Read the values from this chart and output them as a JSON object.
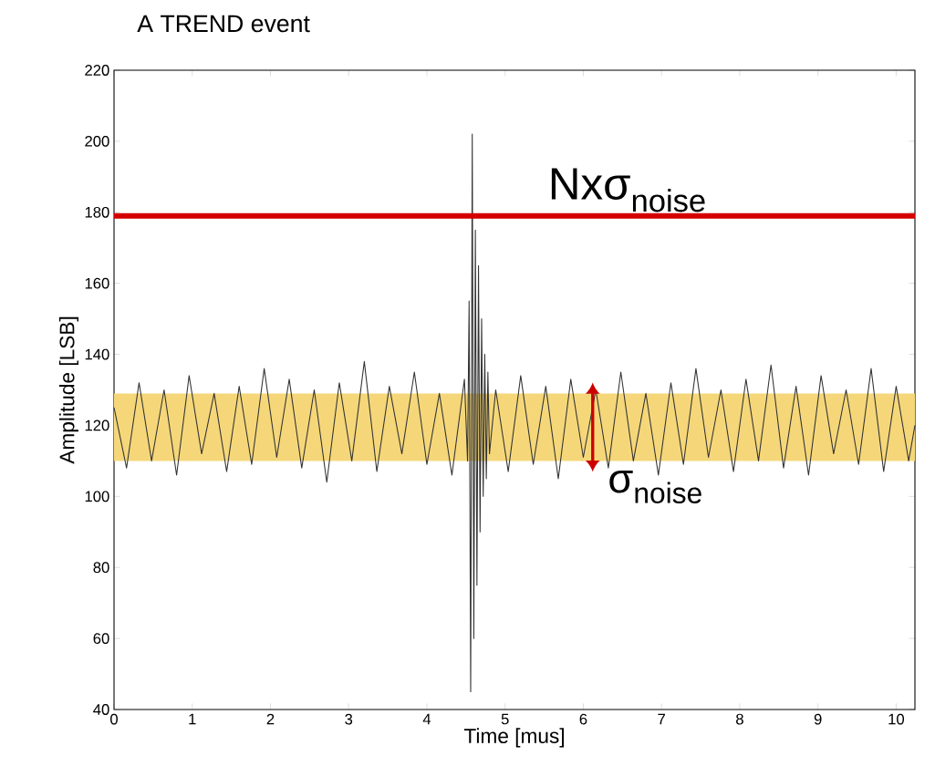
{
  "chart_data": {
    "type": "line",
    "title": "A TREND event",
    "xlabel": "Time [mus]",
    "ylabel": "Amplitude [LSB]",
    "xlim": [
      0,
      10.24
    ],
    "xticks": [
      0,
      1,
      2,
      3,
      4,
      5,
      6,
      7,
      8,
      9,
      10
    ],
    "ylim": [
      40,
      220
    ],
    "yticks": [
      40,
      60,
      80,
      100,
      120,
      140,
      160,
      180,
      200,
      220
    ],
    "grid": false,
    "marker": "none",
    "line_style": "solid",
    "series": [
      {
        "color": "#333333",
        "x": [
          0,
          0.16,
          0.32,
          0.48,
          0.64,
          0.8,
          0.96,
          1.12,
          1.28,
          1.44,
          1.6,
          1.76,
          1.92,
          2.08,
          2.24,
          2.4,
          2.56,
          2.72,
          2.88,
          3.04,
          3.2,
          3.36,
          3.52,
          3.68,
          3.84,
          4.0,
          4.16,
          4.32,
          4.48,
          4.52,
          4.54,
          4.56,
          4.58,
          4.6,
          4.62,
          4.64,
          4.66,
          4.68,
          4.7,
          4.72,
          4.74,
          4.76,
          4.78,
          4.8,
          4.88,
          5.04,
          5.2,
          5.36,
          5.52,
          5.68,
          5.84,
          6.0,
          6.16,
          6.32,
          6.48,
          6.64,
          6.8,
          6.96,
          7.12,
          7.28,
          7.44,
          7.6,
          7.76,
          7.92,
          8.08,
          8.24,
          8.4,
          8.56,
          8.72,
          8.88,
          9.04,
          9.2,
          9.36,
          9.52,
          9.68,
          9.84,
          10.0,
          10.16,
          10.24
        ],
        "values": [
          125,
          108,
          132,
          110,
          130,
          106,
          134,
          112,
          129,
          107,
          131,
          109,
          136,
          111,
          133,
          108,
          130,
          104,
          132,
          110,
          138,
          107,
          131,
          112,
          135,
          109,
          129,
          106,
          133,
          110,
          155,
          45,
          202,
          60,
          175,
          75,
          165,
          90,
          150,
          100,
          140,
          105,
          135,
          112,
          130,
          107,
          134,
          109,
          131,
          105,
          133,
          111,
          130,
          108,
          135,
          110,
          129,
          106,
          132,
          109,
          136,
          111,
          130,
          107,
          133,
          110,
          137,
          108,
          131,
          106,
          134,
          112,
          130,
          109,
          136,
          107,
          131,
          110,
          120
        ]
      }
    ],
    "ref_lines": [
      {
        "axis": "y",
        "value": 179,
        "label": "Nxσ$_{noise}$",
        "color": "#d40000"
      }
    ],
    "bands": [
      {
        "axis": "y",
        "from": 110,
        "to": 129,
        "label": "σ$_{noise}$",
        "color": "#f5d77a"
      }
    ]
  }
}
